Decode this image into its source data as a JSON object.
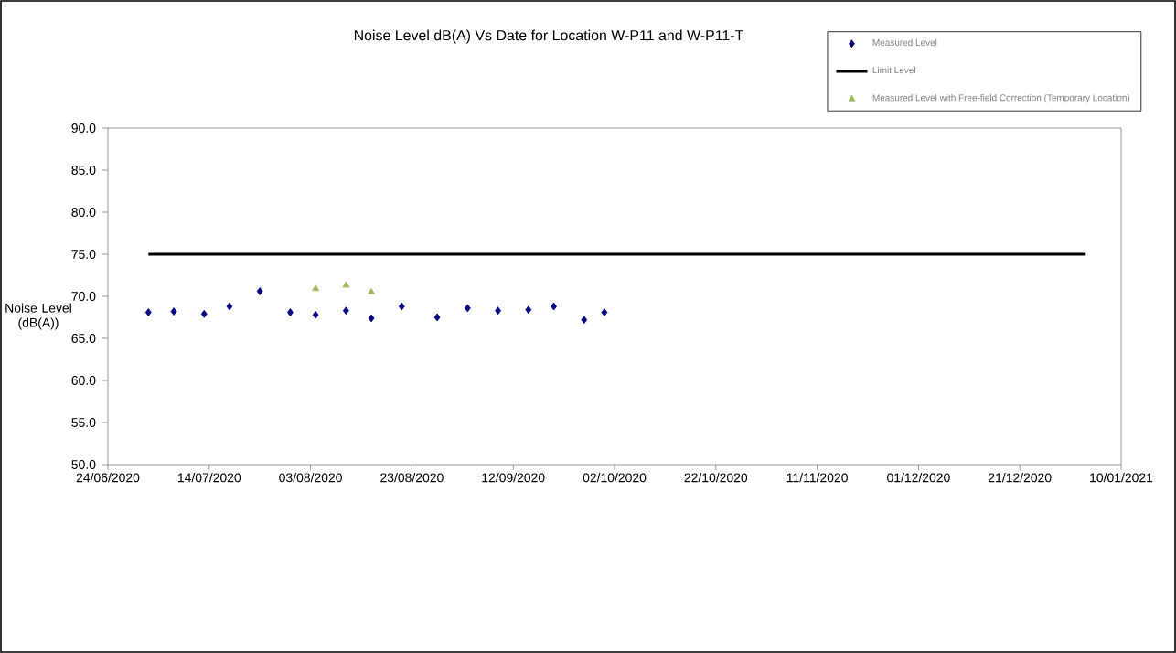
{
  "chart_data": {
    "type": "scatter",
    "title": "Noise Level dB(A) Vs Date for Location W-P11 and W-P11-T",
    "ylabel": "Noise Level (dB(A))",
    "xlim": [
      "2020-06-24",
      "2021-01-10"
    ],
    "xticks": [
      {
        "value": "2020-06-24",
        "label": "24/06/2020"
      },
      {
        "value": "2020-07-14",
        "label": "14/07/2020"
      },
      {
        "value": "2020-08-03",
        "label": "03/08/2020"
      },
      {
        "value": "2020-08-23",
        "label": "23/08/2020"
      },
      {
        "value": "2020-09-12",
        "label": "12/09/2020"
      },
      {
        "value": "2020-10-02",
        "label": "02/10/2020"
      },
      {
        "value": "2020-10-22",
        "label": "22/10/2020"
      },
      {
        "value": "2020-11-11",
        "label": "11/11/2020"
      },
      {
        "value": "2020-12-01",
        "label": "01/12/2020"
      },
      {
        "value": "2020-12-21",
        "label": "21/12/2020"
      },
      {
        "value": "2021-01-10",
        "label": "10/01/2021"
      }
    ],
    "ylim": [
      50,
      90
    ],
    "yticks": [
      {
        "value": 50,
        "label": "50.0"
      },
      {
        "value": 55,
        "label": "55.0"
      },
      {
        "value": 60,
        "label": "60.0"
      },
      {
        "value": 65,
        "label": "65.0"
      },
      {
        "value": 70,
        "label": "70.0"
      },
      {
        "value": 75,
        "label": "75.0"
      },
      {
        "value": 80,
        "label": "80.0"
      },
      {
        "value": 85,
        "label": "85.0"
      },
      {
        "value": 90,
        "label": "90.0"
      }
    ],
    "grid": false,
    "legend": "top right",
    "series": [
      {
        "name": "Measured Level",
        "marker": "diamond",
        "color": "#000080",
        "x": [
          "2020-07-02",
          "2020-07-07",
          "2020-07-13",
          "2020-07-18",
          "2020-07-24",
          "2020-07-30",
          "2020-08-04",
          "2020-08-10",
          "2020-08-15",
          "2020-08-21",
          "2020-08-28",
          "2020-09-03",
          "2020-09-09",
          "2020-09-15",
          "2020-09-20",
          "2020-09-26",
          "2020-09-30"
        ],
        "values": [
          68.1,
          68.2,
          67.9,
          68.8,
          70.6,
          68.1,
          67.8,
          68.3,
          67.4,
          68.8,
          67.5,
          68.6,
          68.3,
          68.4,
          68.8,
          67.2,
          68.1
        ]
      },
      {
        "name": "Limit Level",
        "type": "line",
        "marker": "none",
        "color": "#000000",
        "x": [
          "2020-07-02",
          "2021-01-03"
        ],
        "values": [
          75,
          75
        ]
      },
      {
        "name": "Measured Level with Free-field Correction (Temporary Location)",
        "marker": "triangle",
        "color": "#9bbb59",
        "x": [
          "2020-08-04",
          "2020-08-10",
          "2020-08-15"
        ],
        "values": [
          70.9,
          71.3,
          70.5
        ]
      }
    ]
  }
}
